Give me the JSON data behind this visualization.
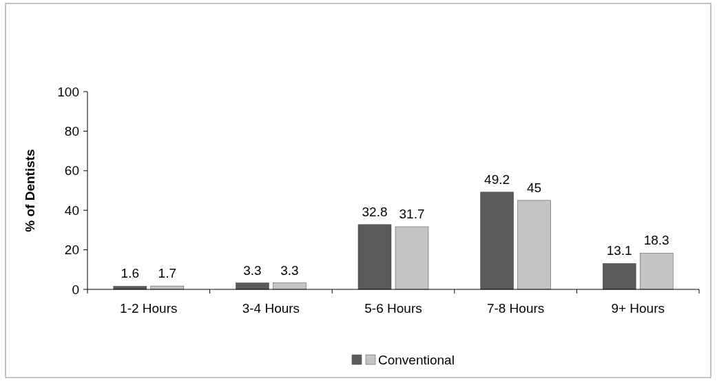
{
  "chart_data": {
    "type": "bar",
    "ylabel": "% of Dentists",
    "categories": [
      "1-2 Hours",
      "3-4 Hours",
      "5-6 Hours",
      "7-8 Hours",
      "9+ Hours"
    ],
    "series": [
      {
        "color": "#5a5a5a",
        "values": [
          1.6,
          3.3,
          32.8,
          49.2,
          13.1
        ]
      },
      {
        "name": "Conventional",
        "color": "#c4c4c4",
        "values": [
          1.7,
          3.3,
          31.7,
          45,
          18.3
        ]
      }
    ],
    "ylim": [
      0,
      100
    ],
    "yticks": [
      0,
      20,
      40,
      60,
      80,
      100
    ],
    "grid": false,
    "legend": "bottom",
    "data_labels": true
  }
}
